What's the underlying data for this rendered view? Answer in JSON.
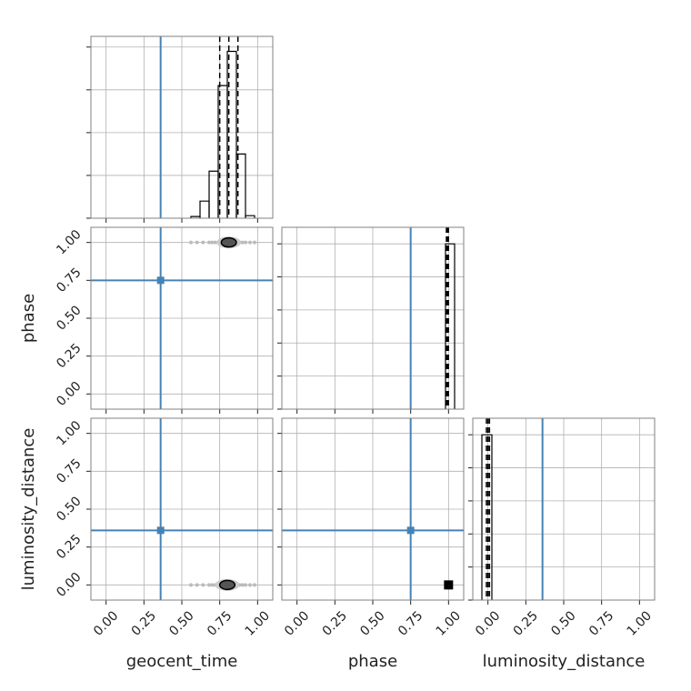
{
  "chart_data": {
    "type": "corner",
    "parameters": [
      "geocent_time",
      "phase",
      "luminosity_distance"
    ],
    "truths": [
      0.36,
      0.75,
      0.36
    ],
    "truth_color": "#4682b4",
    "lim": [
      -0.1,
      1.1
    ],
    "ticks": [
      {
        "value": 0,
        "label": "0.00"
      },
      {
        "value": 0.25,
        "label": "0.25"
      },
      {
        "value": 0.5,
        "label": "0.50"
      },
      {
        "value": 0.75,
        "label": "0.75"
      },
      {
        "value": 1,
        "label": "1.00"
      }
    ],
    "grid": true,
    "histograms": [
      {
        "bins": [
          0.56,
          0.62,
          0.68,
          0.74,
          0.8,
          0.86,
          0.92,
          0.98
        ],
        "counts": [
          0.4,
          4,
          11,
          31,
          39,
          15,
          0.6
        ],
        "ylim": [
          0,
          42.5
        ],
        "yticks": [
          0,
          10,
          20,
          30,
          40
        ],
        "quantiles": [
          0.75,
          0.81,
          0.87
        ]
      },
      {
        "bins": [
          0.98,
          1.04
        ],
        "counts": [
          1
        ],
        "ylim": [
          0,
          1.1
        ],
        "yticks": [
          0,
          0.2,
          0.4,
          0.6,
          0.8,
          1
        ],
        "quantiles": [
          0.986,
          0.993,
          0.999
        ]
      },
      {
        "bins": [
          -0.04,
          0.026
        ],
        "counts": [
          1
        ],
        "ylim": [
          0,
          1.1
        ],
        "yticks": [
          0,
          0.2,
          0.4,
          0.6,
          0.8,
          1
        ],
        "quantiles": [
          -0.01,
          0,
          0.01
        ]
      }
    ],
    "panels": [
      {
        "samples": {
          "x": [
            0.56,
            0.6,
            0.64,
            0.68,
            0.7,
            0.72,
            0.74,
            0.76,
            0.86,
            0.88,
            0.9,
            0.92,
            0.95,
            0.98
          ],
          "y": [
            1,
            1,
            1,
            1,
            1,
            1,
            1,
            1,
            1,
            1,
            1,
            1,
            1,
            1
          ]
        },
        "core": {
          "x": 0.81,
          "y": 1,
          "rx": 0.05,
          "ry": 0.03
        },
        "marker": "ellipse"
      },
      {
        "samples": {
          "x": [
            0.56,
            0.6,
            0.64,
            0.68,
            0.7,
            0.72,
            0.74,
            0.76,
            0.86,
            0.88,
            0.9,
            0.92,
            0.95,
            0.98
          ],
          "y": [
            0,
            0,
            0,
            0,
            0,
            0,
            0,
            0,
            0,
            0,
            0,
            0,
            0,
            0
          ]
        },
        "core": {
          "x": 0.8,
          "y": 0,
          "rx": 0.05,
          "ry": 0.03
        },
        "marker": "ellipse"
      },
      {
        "samples": {
          "x": [],
          "y": []
        },
        "core": {
          "x": 1,
          "y": 0,
          "rx": 0.03,
          "ry": 0.03
        },
        "marker": "square"
      }
    ]
  }
}
